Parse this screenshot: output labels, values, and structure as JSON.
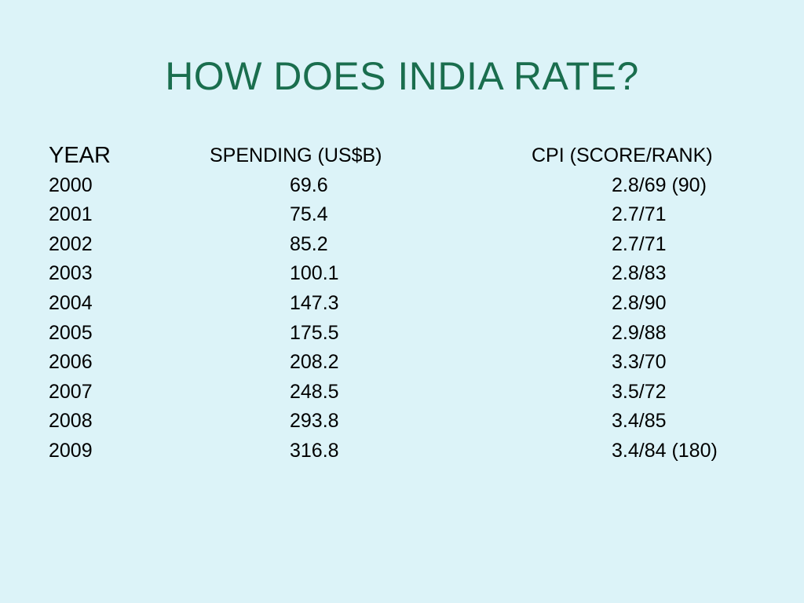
{
  "slide": {
    "title": "HOW DOES INDIA RATE?",
    "headers": {
      "year": "YEAR",
      "spending": "SPENDING (US$B)",
      "cpi": "CPI (SCORE/RANK)"
    },
    "rows": [
      {
        "year": "2000",
        "spending": "69.6",
        "cpi": "2.8/69 (90)"
      },
      {
        "year": "2001",
        "spending": "75.4",
        "cpi": "2.7/71"
      },
      {
        "year": "2002",
        "spending": "85.2",
        "cpi": "2.7/71"
      },
      {
        "year": "2003",
        "spending": "100.1",
        "cpi": "2.8/83"
      },
      {
        "year": "2004",
        "spending": "147.3",
        "cpi": "2.8/90"
      },
      {
        "year": "2005",
        "spending": "175.5",
        "cpi": "2.9/88"
      },
      {
        "year": "2006",
        "spending": "208.2",
        "cpi": "3.3/70"
      },
      {
        "year": "2007",
        "spending": "248.5",
        "cpi": "3.5/72"
      },
      {
        "year": "2008",
        "spending": "293.8",
        "cpi": "3.4/85"
      },
      {
        "year": "2009",
        "spending": "316.8",
        "cpi": "3.4/84 (180)"
      }
    ]
  },
  "colors": {
    "background": "#dcf3f8",
    "title": "#1a6e4e",
    "text": "#000000"
  }
}
